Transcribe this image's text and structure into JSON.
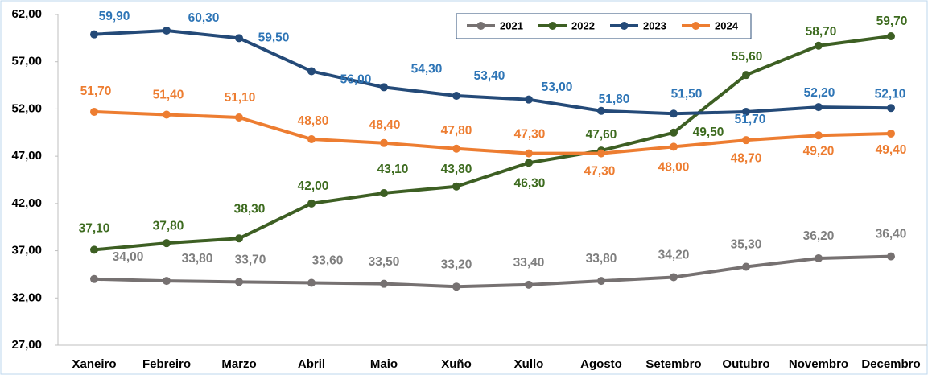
{
  "chart_data": {
    "type": "line",
    "categories": [
      "Xaneiro",
      "Febreiro",
      "Marzo",
      "Abril",
      "Maio",
      "Xuño",
      "Xullo",
      "Agosto",
      "Setembro",
      "Outubro",
      "Novembro",
      "Decembro"
    ],
    "ylim": [
      27,
      62
    ],
    "yticks": [
      {
        "value": 27,
        "label": "27,00"
      },
      {
        "value": 32,
        "label": "32,00"
      },
      {
        "value": 37,
        "label": "37,00"
      },
      {
        "value": 42,
        "label": "42,00"
      },
      {
        "value": 47,
        "label": "47,00"
      },
      {
        "value": 52,
        "label": "52,00"
      },
      {
        "value": 57,
        "label": "57,00"
      },
      {
        "value": 62,
        "label": "62,00"
      }
    ],
    "grid": false,
    "legend": "top",
    "series": [
      {
        "name": "2021",
        "color": "#767171",
        "values": [
          34.0,
          33.8,
          33.7,
          33.6,
          33.5,
          33.2,
          33.4,
          33.8,
          34.2,
          35.3,
          36.2,
          36.4
        ],
        "value_labels": [
          "34,00",
          "33,80",
          "33,70",
          "33,60",
          "33,50",
          "33,20",
          "33,40",
          "33,80",
          "34,20",
          "35,30",
          "36,20",
          "36,40"
        ]
      },
      {
        "name": "2022",
        "color": "#3d5f23",
        "values": [
          37.1,
          37.8,
          38.3,
          42.0,
          43.1,
          43.8,
          46.3,
          47.6,
          49.5,
          55.6,
          58.7,
          59.7
        ],
        "value_labels": [
          "37,10",
          "37,80",
          "38,30",
          "42,00",
          "43,10",
          "43,80",
          "46,30",
          "47,60",
          "49,50",
          "55,60",
          "58,70",
          "59,70"
        ]
      },
      {
        "name": "2023",
        "color": "#244a78",
        "values": [
          59.9,
          60.3,
          59.5,
          56.0,
          54.3,
          53.4,
          53.0,
          51.8,
          51.5,
          51.7,
          52.2,
          52.1
        ],
        "value_labels": [
          "59,90",
          "60,30",
          "59,50",
          "56,00",
          "54,30",
          "53,40",
          "53,00",
          "51,80",
          "51,50",
          "51,70",
          "52,20",
          "52,10"
        ]
      },
      {
        "name": "2024",
        "color": "#ed7d31",
        "values": [
          51.7,
          51.4,
          51.1,
          48.8,
          48.4,
          47.8,
          47.3,
          47.3,
          48.0,
          48.7,
          49.2,
          49.4
        ],
        "value_labels": [
          "51,70",
          "51,40",
          "51,10",
          "48,80",
          "48,40",
          "47,80",
          "47,30",
          "47,30",
          "48,00",
          "48,70",
          "49,20",
          "49,40"
        ]
      }
    ]
  }
}
